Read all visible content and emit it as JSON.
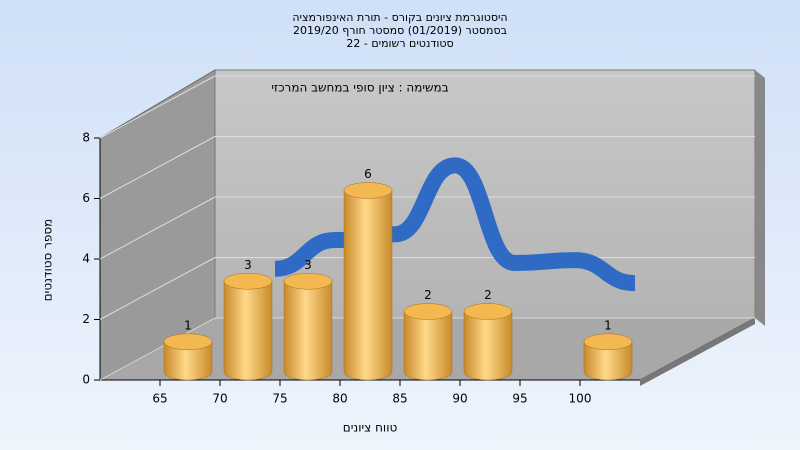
{
  "chart_data": {
    "type": "bar",
    "title": [
      "היסטוגרמת ציונים בקורס - תורת האינפורמציה",
      "בסמסטר  (01/2019)  סמסטר חורף 2019/20",
      "סטודנטים רשומים - 22"
    ],
    "subtitle": "במשימה : ציון סופי במחשב המרכזי",
    "x_label": "טווח ציונים",
    "y_label": "מספר סטודנטים",
    "categories": [
      "65",
      "70",
      "75",
      "80",
      "85",
      "90",
      "95",
      "100"
    ],
    "values": [
      1,
      3,
      3,
      6,
      2,
      2,
      0,
      1
    ],
    "color": "#e8a640",
    "trend": {
      "color": "#2f6bc4",
      "values": [
        null,
        3,
        4,
        4.2,
        6.6,
        3.2,
        3.3,
        2.5
      ]
    },
    "ylim": [
      0,
      8
    ],
    "yticks": [
      0,
      2,
      4,
      6,
      8
    ],
    "grid": true
  }
}
